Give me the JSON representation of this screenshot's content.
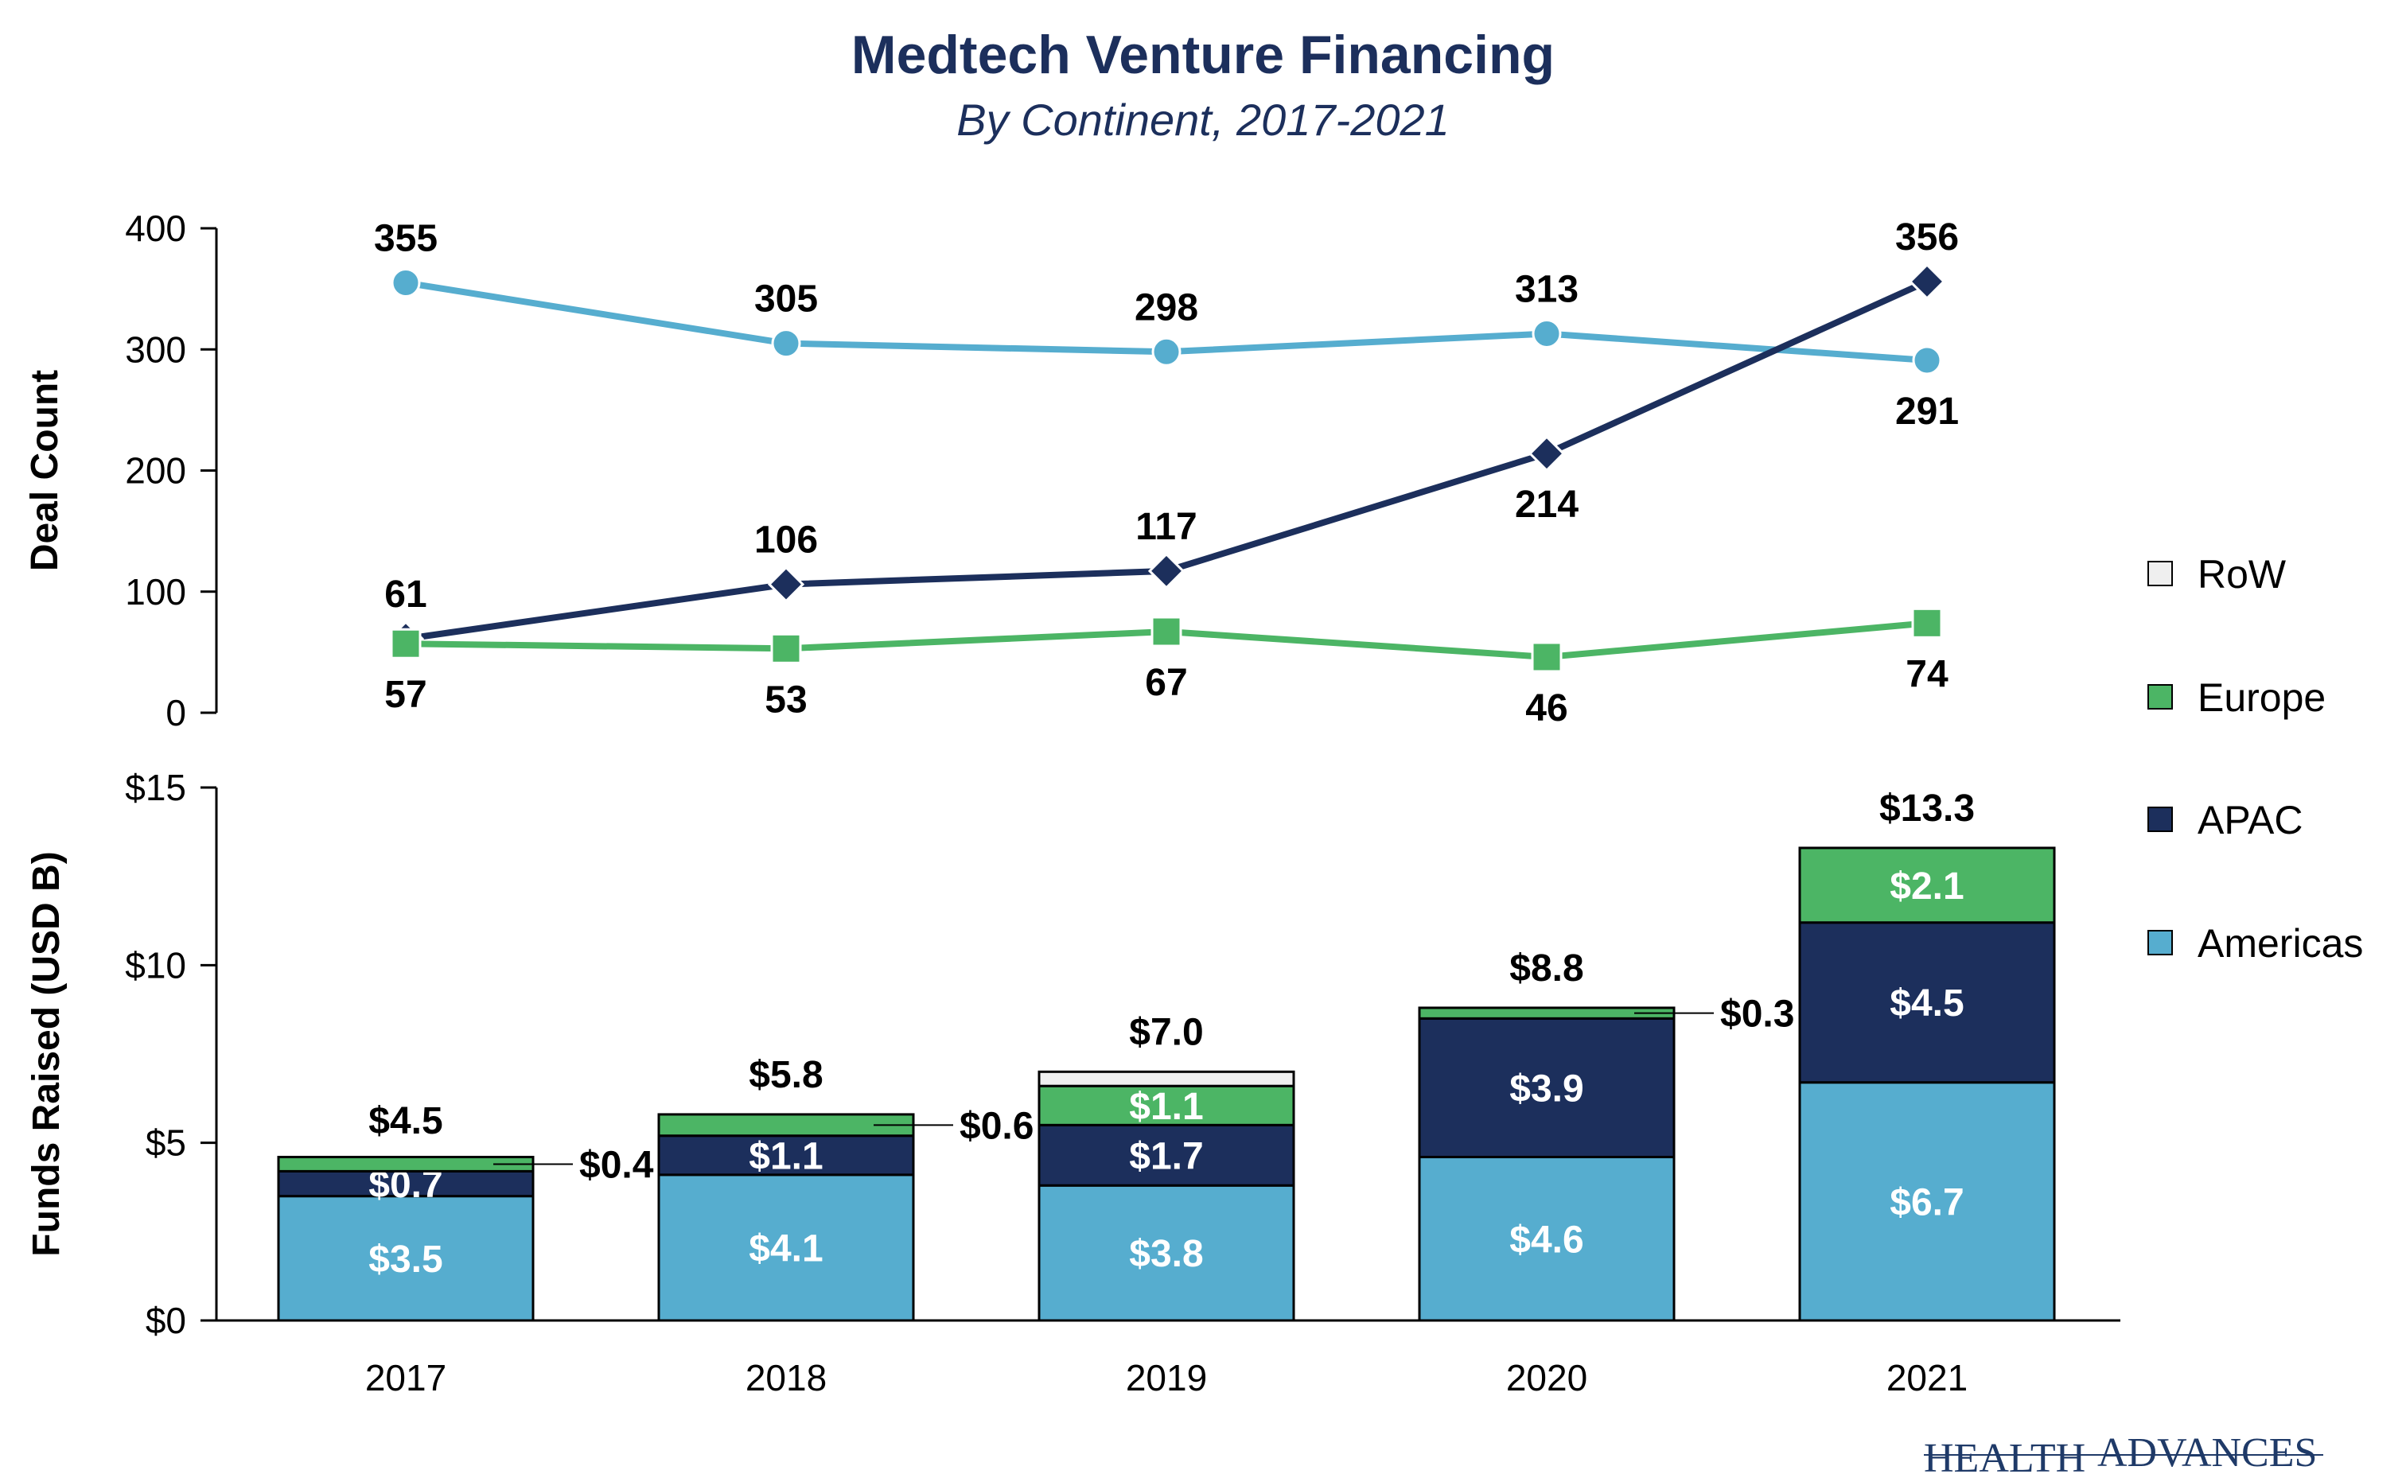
{
  "header": {
    "title": "Medtech Venture Financing",
    "subtitle": "By Continent, 2017-2021"
  },
  "logo": {
    "text_left": "HEALTH",
    "text_right": "ADVANCES"
  },
  "colors": {
    "americas": "#56adcf",
    "apac": "#1c2f5c",
    "europe": "#4cb565",
    "row": "#efefef",
    "title": "#1c2f5c"
  },
  "legend": {
    "placement": "right",
    "items": [
      {
        "label": "RoW",
        "key": "row"
      },
      {
        "label": "Europe",
        "key": "europe"
      },
      {
        "label": "APAC",
        "key": "apac"
      },
      {
        "label": "Americas",
        "key": "americas"
      }
    ]
  },
  "chart_data": [
    {
      "type": "line",
      "categories": [
        "2017",
        "2018",
        "2019",
        "2020",
        "2021"
      ],
      "ylabel": "Deal Count",
      "ylim": [
        0,
        400
      ],
      "yticks": [
        0,
        100,
        200,
        300,
        400
      ],
      "series": [
        {
          "name": "Americas",
          "key": "americas",
          "marker": "circle",
          "values": [
            355,
            305,
            298,
            313,
            291
          ],
          "label_pos": [
            "above",
            "above",
            "above",
            "above",
            "below"
          ]
        },
        {
          "name": "APAC",
          "key": "apac",
          "marker": "diamond",
          "values": [
            61,
            106,
            117,
            214,
            356
          ],
          "label_pos": [
            "above",
            "above",
            "above",
            "below",
            "above"
          ]
        },
        {
          "name": "Europe",
          "key": "europe",
          "marker": "square",
          "values": [
            57,
            53,
            67,
            46,
            74
          ],
          "label_pos": [
            "below",
            "below",
            "below",
            "below",
            "below"
          ]
        }
      ]
    },
    {
      "type": "bar",
      "stacked": true,
      "categories": [
        "2017",
        "2018",
        "2019",
        "2020",
        "2021"
      ],
      "ylabel": "Funds Raised (USD B)",
      "ylim": [
        0,
        15
      ],
      "yticks": [
        0,
        5,
        10,
        15
      ],
      "ytick_labels": [
        "$0",
        "$5",
        "$10",
        "$15"
      ],
      "series": [
        {
          "name": "Americas",
          "key": "americas",
          "values": [
            3.5,
            4.1,
            3.8,
            4.6,
            6.7
          ],
          "labels": [
            "$3.5",
            "$4.1",
            "$3.8",
            "$4.6",
            "$6.7"
          ]
        },
        {
          "name": "APAC",
          "key": "apac",
          "values": [
            0.7,
            1.1,
            1.7,
            3.9,
            4.5
          ],
          "labels": [
            "$0.7",
            "$1.1",
            "$1.7",
            "$3.9",
            "$4.5"
          ]
        },
        {
          "name": "Europe",
          "key": "europe",
          "values": [
            0.4,
            0.6,
            1.1,
            0.3,
            2.1
          ],
          "labels": [
            "$0.4",
            "$0.6",
            "$1.1",
            "$0.3",
            "$2.1"
          ],
          "label_outside": [
            true,
            true,
            false,
            true,
            false
          ]
        },
        {
          "name": "RoW",
          "key": "row",
          "values": [
            0,
            0,
            0.4,
            0,
            0
          ],
          "labels": [
            "",
            "",
            "",
            "",
            ""
          ]
        }
      ],
      "totals": [
        4.5,
        5.8,
        7.0,
        8.8,
        13.3
      ],
      "total_labels": [
        "$4.5",
        "$5.8",
        "$7.0",
        "$8.8",
        "$13.3"
      ]
    }
  ]
}
